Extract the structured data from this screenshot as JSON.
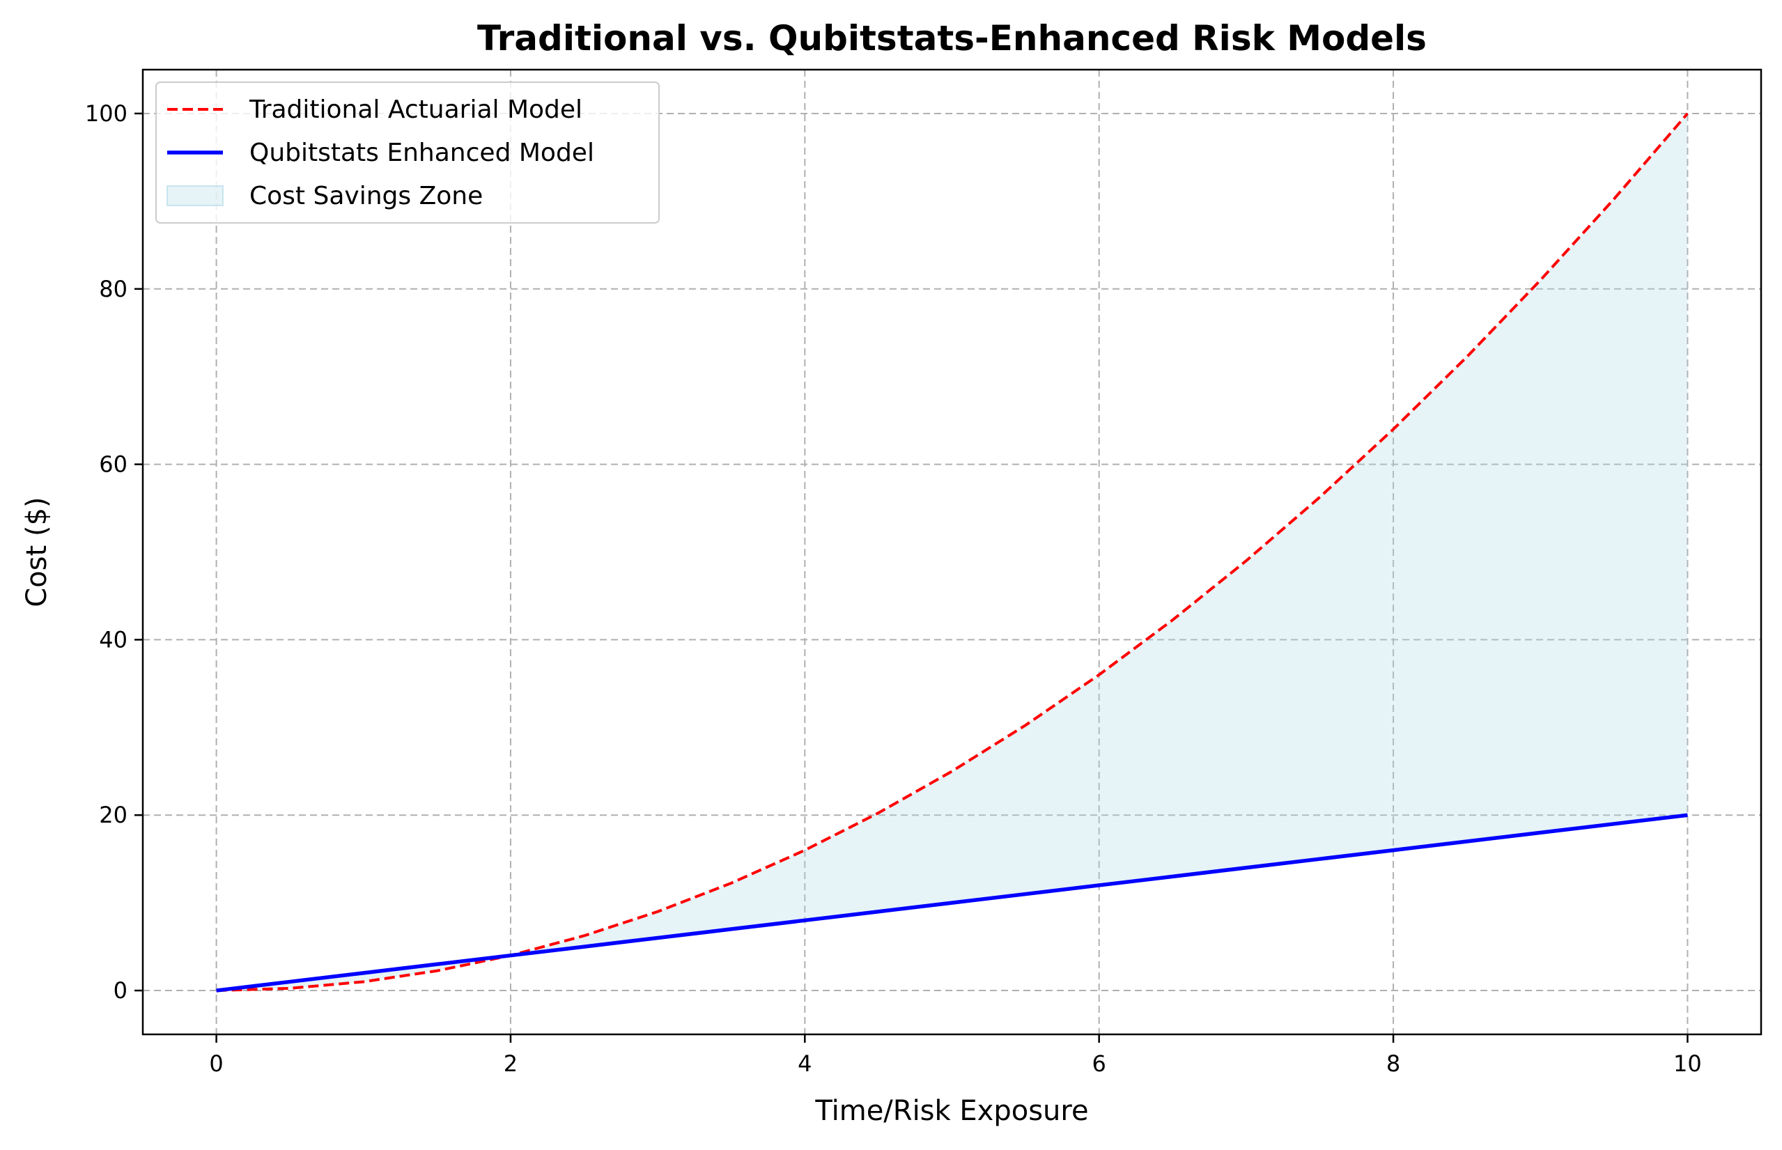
{
  "chart_data": {
    "type": "line",
    "title": "Traditional vs. Qubitstats-Enhanced Risk Models",
    "xlabel": "Time/Risk Exposure",
    "ylabel": "Cost ($)",
    "xlim": [
      -0.5,
      10.5
    ],
    "ylim": [
      -5,
      105
    ],
    "xticks": [
      0,
      2,
      4,
      6,
      8,
      10
    ],
    "yticks": [
      0,
      20,
      40,
      60,
      80,
      100
    ],
    "grid": true,
    "legend_position": "top-left",
    "x": [
      0,
      0.5,
      1,
      1.5,
      2,
      2.5,
      3,
      3.5,
      4,
      4.5,
      5,
      5.5,
      6,
      6.5,
      7,
      7.5,
      8,
      8.5,
      9,
      9.5,
      10
    ],
    "series": [
      {
        "name": "Traditional Actuarial Model",
        "style": "dashed",
        "color": "#ff0000",
        "values": [
          0,
          0.25,
          1,
          2.25,
          4,
          6.25,
          9,
          12.25,
          16,
          20.25,
          25,
          30.25,
          36,
          42.25,
          49,
          56.25,
          64,
          72.25,
          81,
          90.25,
          100
        ]
      },
      {
        "name": "Qubitstats Enhanced Model",
        "style": "solid",
        "color": "#0000ff",
        "values": [
          0,
          1,
          2,
          3,
          4,
          5,
          6,
          7,
          8,
          9,
          10,
          11,
          12,
          13,
          14,
          15,
          16,
          17,
          18,
          19,
          20
        ]
      }
    ],
    "fill_between": {
      "name": "Cost Savings Zone",
      "color": "#add8e6",
      "opacity": 0.3
    }
  }
}
